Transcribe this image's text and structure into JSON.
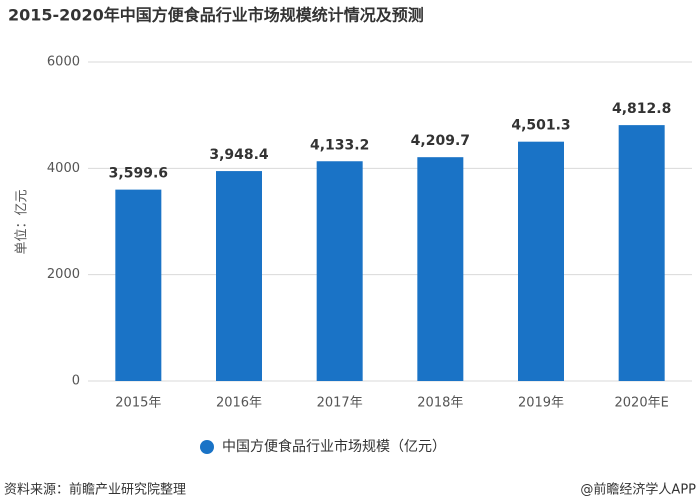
{
  "chart_data": {
    "type": "bar",
    "title": "2015-2020年中国方便食品行业市场规模统计情况及预测",
    "y_label": "单位：亿元",
    "categories": [
      "2015年",
      "2016年",
      "2017年",
      "2018年",
      "2019年",
      "2020年E"
    ],
    "series": [
      {
        "name": "中国方便食品行业市场规模（亿元）",
        "color": "#1a73c6",
        "values": [
          3599.6,
          3948.4,
          4133.2,
          4209.7,
          4501.3,
          4812.8
        ],
        "value_labels": [
          "3,599.6",
          "3,948.4",
          "4,133.2",
          "4,209.7",
          "4,501.3",
          "4,812.8"
        ]
      }
    ],
    "ylim": [
      0,
      6000
    ],
    "yticks": [
      0,
      2000,
      4000,
      6000
    ],
    "grid": true,
    "source": "资料来源：前瞻产业研究院整理",
    "credit": "@前瞻经济学人APP"
  }
}
